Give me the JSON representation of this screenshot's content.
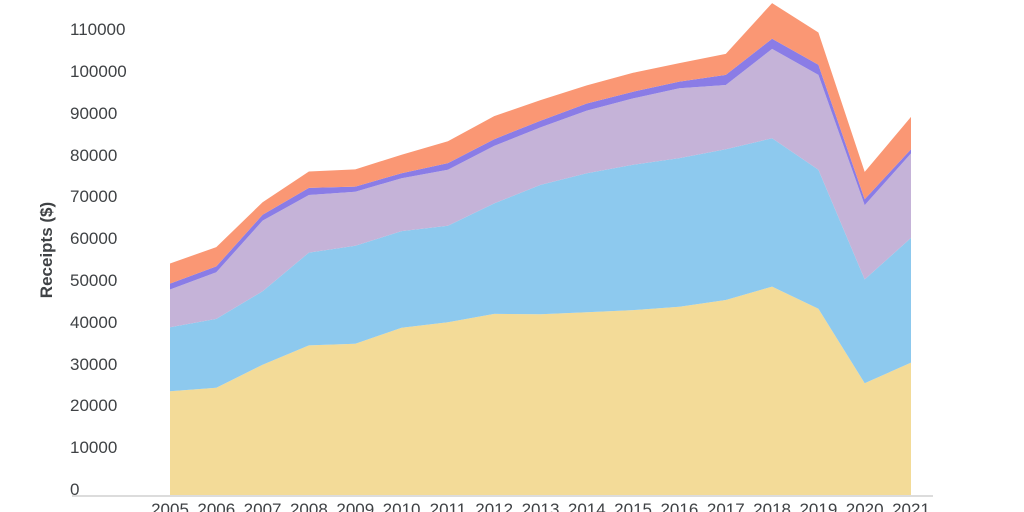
{
  "chart_data": {
    "type": "area",
    "stacked": true,
    "title": "",
    "xlabel": "",
    "ylabel": "Receipts ($)",
    "legend": "none",
    "grid": false,
    "ylim": [
      0,
      110000
    ],
    "y_tick_step": 10000,
    "y_tick_labels": [
      "0",
      "10000",
      "20000",
      "30000",
      "40000",
      "50000",
      "60000",
      "70000",
      "80000",
      "90000",
      "100000",
      "110000"
    ],
    "x": [
      2005,
      2006,
      2007,
      2008,
      2009,
      2010,
      2011,
      2012,
      2013,
      2014,
      2015,
      2016,
      2017,
      2018,
      2019,
      2020,
      2021
    ],
    "x_tick_labels": [
      "2005",
      "2006",
      "2007",
      "2008",
      "2009",
      "2010",
      "2011",
      "2012",
      "2013",
      "2014",
      "2015",
      "2016",
      "2017",
      "2018",
      "2019",
      "2020",
      "2021"
    ],
    "series": [
      {
        "name": "yellow-band",
        "color": "#F3DB98",
        "values": [
          25200,
          26000,
          31500,
          36100,
          36500,
          40300,
          41600,
          43600,
          43500,
          44000,
          44500,
          45300,
          46900,
          50100,
          44800,
          27100,
          32000
        ]
      },
      {
        "name": "blue-band",
        "color": "#8DC9EE",
        "values": [
          15200,
          16400,
          17500,
          22100,
          23300,
          23000,
          23000,
          26300,
          30800,
          33100,
          34600,
          35400,
          35900,
          35300,
          33100,
          24700,
          29700
        ]
      },
      {
        "name": "lavender-band",
        "color": "#C5B3D8",
        "values": [
          9000,
          11100,
          16800,
          13700,
          12900,
          12600,
          13300,
          13700,
          13700,
          14900,
          15800,
          16600,
          15300,
          21300,
          22600,
          17700,
          20100
        ]
      },
      {
        "name": "purple-band",
        "color": "#8A7CE6",
        "values": [
          1400,
          1400,
          1400,
          1700,
          1200,
          1200,
          1600,
          1600,
          1600,
          1700,
          1600,
          1600,
          2400,
          2400,
          2400,
          1400,
          1000
        ]
      },
      {
        "name": "orange-band",
        "color": "#FA9774",
        "values": [
          4800,
          4600,
          3000,
          3900,
          4100,
          4400,
          5200,
          5500,
          4900,
          4300,
          4500,
          4400,
          5000,
          8500,
          7700,
          6500,
          7700
        ]
      }
    ],
    "colors": {
      "text": "#3f4245",
      "axis_line": "#dcdcdc",
      "background": "#ffffff"
    }
  }
}
